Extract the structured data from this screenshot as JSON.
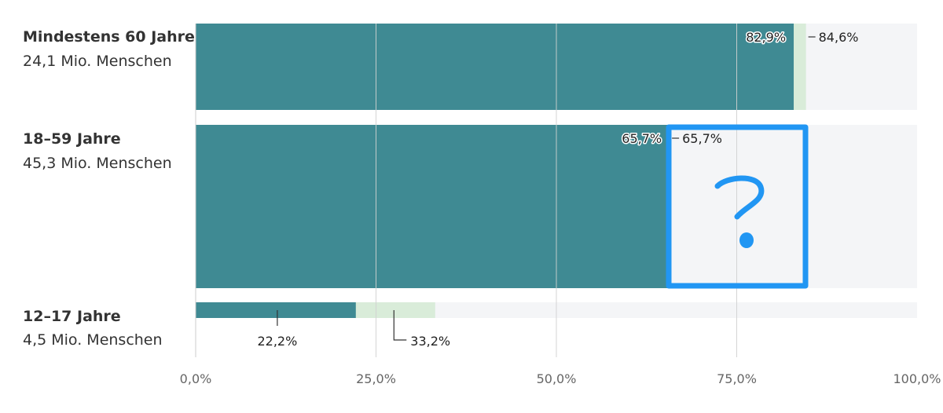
{
  "chart_data": {
    "type": "bar",
    "orientation": "horizontal",
    "xlim": [
      0,
      100
    ],
    "x_ticks": [
      "0,0%",
      "25,0%",
      "50,0%",
      "75,0%",
      "100,0%"
    ],
    "x_tick_values": [
      0,
      25,
      50,
      75,
      100
    ],
    "grid": true,
    "categories": [
      {
        "label": "Mindestens 60 Jahre",
        "sublabel": "24,1 Mio. Menschen"
      },
      {
        "label": "18–59 Jahre",
        "sublabel": "45,3 Mio. Menschen"
      },
      {
        "label": "12–17 Jahre",
        "sublabel": "4,5 Mio. Menschen"
      }
    ],
    "series": [
      {
        "values": [
          82.9,
          65.7,
          22.2
        ],
        "labels": [
          "82,9%",
          "65,7%",
          "22,2%"
        ]
      },
      {
        "values": [
          84.6,
          65.7,
          33.2
        ],
        "labels": [
          "84,6%",
          "65,7%",
          "33,2%"
        ]
      }
    ],
    "annotation": {
      "text": "?",
      "color": "#2196f3"
    },
    "colors": {
      "series_0": "#3f8a93",
      "series_1": "#d9ecd9",
      "track": "#f4f5f7",
      "grid": "#d0d0d0",
      "annotation": "#2196f3"
    }
  }
}
